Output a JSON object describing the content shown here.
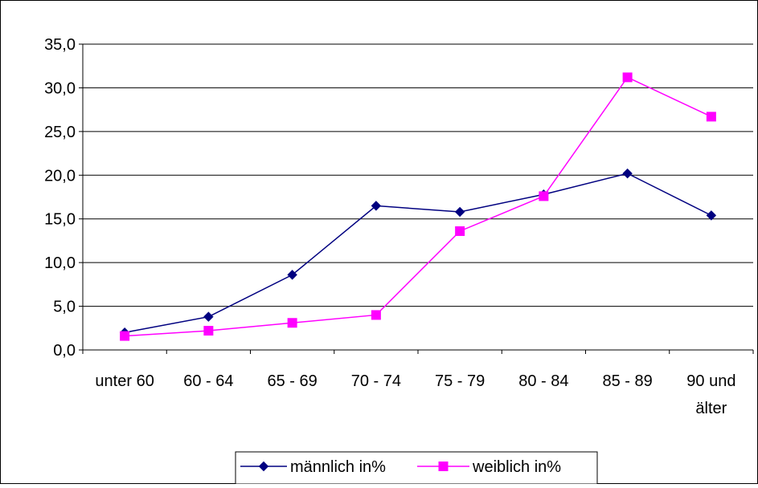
{
  "chart_data": {
    "type": "line",
    "title": "",
    "xlabel": "",
    "ylabel": "",
    "categories": [
      [
        "unter 60"
      ],
      [
        "60 - 64"
      ],
      [
        "65 - 69"
      ],
      [
        "70 - 74"
      ],
      [
        "75 - 79"
      ],
      [
        "80 - 84"
      ],
      [
        "85 - 89"
      ],
      [
        "90 und",
        "älter"
      ]
    ],
    "ylim": [
      0,
      35
    ],
    "yticks": [
      0,
      5,
      10,
      15,
      20,
      25,
      30,
      35
    ],
    "ytick_labels": [
      "0,0",
      "5,0",
      "10,0",
      "15,0",
      "20,0",
      "25,0",
      "30,0",
      "35,0"
    ],
    "grid": "horizontal",
    "legend_position": "bottom",
    "series": [
      {
        "name": "männlich in%",
        "color": "#000080",
        "marker": "diamond",
        "values": [
          2.0,
          3.8,
          8.6,
          16.5,
          15.8,
          17.8,
          20.2,
          15.4
        ]
      },
      {
        "name": "weiblich in%",
        "color": "#FF00FF",
        "marker": "square",
        "values": [
          1.6,
          2.2,
          3.1,
          4.0,
          13.6,
          17.6,
          31.2,
          26.7
        ]
      }
    ]
  }
}
